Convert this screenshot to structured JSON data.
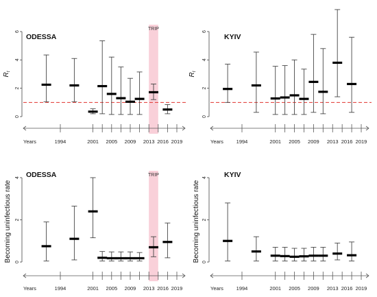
{
  "chart_data": [
    {
      "id": "odessa_rt",
      "type": "interval",
      "title": "ODESSA",
      "ylabel": "R_t",
      "ylim": [
        0,
        6
      ],
      "yticks": [
        0,
        2,
        4,
        6
      ],
      "reference_line": 1,
      "trip_band": {
        "label": "TRIP",
        "from": 2013,
        "to": 2015
      },
      "points": [
        {
          "x": 1991,
          "median": 2.25,
          "low": 1.05,
          "high": 4.35
        },
        {
          "x": 1997,
          "median": 2.2,
          "low": 1.05,
          "high": 4.1
        },
        {
          "x": 2001,
          "median": 0.35,
          "low": 0.2,
          "high": 0.55
        },
        {
          "x": 2003,
          "median": 2.15,
          "low": 0.2,
          "high": 5.35
        },
        {
          "x": 2005,
          "median": 1.6,
          "low": 0.15,
          "high": 4.2
        },
        {
          "x": 2007,
          "median": 1.3,
          "low": 0.15,
          "high": 3.5
        },
        {
          "x": 2009,
          "median": 1.05,
          "low": 0.15,
          "high": 2.7
        },
        {
          "x": 2011,
          "median": 1.25,
          "low": 0.15,
          "high": 3.15
        },
        {
          "x": 2014,
          "median": 1.72,
          "low": 1.2,
          "high": 2.3
        },
        {
          "x": 2017,
          "median": 0.5,
          "low": 0.2,
          "high": 0.85
        }
      ]
    },
    {
      "id": "kyiv_rt",
      "type": "interval",
      "title": "KYIV",
      "ylabel": "R_t",
      "ylim": [
        0,
        6
      ],
      "yticks": [
        0,
        2,
        4,
        6
      ],
      "reference_line": 1,
      "points": [
        {
          "x": 1991,
          "median": 1.95,
          "low": 1.0,
          "high": 3.7
        },
        {
          "x": 1997,
          "median": 2.2,
          "low": 0.3,
          "high": 4.55
        },
        {
          "x": 2001,
          "median": 1.28,
          "low": 0.15,
          "high": 3.55
        },
        {
          "x": 2003,
          "median": 1.35,
          "low": 0.15,
          "high": 3.6
        },
        {
          "x": 2005,
          "median": 1.5,
          "low": 0.15,
          "high": 4.0
        },
        {
          "x": 2007,
          "median": 1.25,
          "low": 0.15,
          "high": 3.35
        },
        {
          "x": 2009,
          "median": 2.45,
          "low": 0.3,
          "high": 5.8
        },
        {
          "x": 2011,
          "median": 1.75,
          "low": 0.2,
          "high": 4.8
        },
        {
          "x": 2014,
          "median": 3.8,
          "low": 1.4,
          "high": 7.55
        },
        {
          "x": 2017,
          "median": 2.3,
          "low": 0.3,
          "high": 5.6
        }
      ]
    },
    {
      "id": "odessa_rate",
      "type": "interval",
      "title": "ODESSA",
      "ylabel": "Becoming uninfectious rate",
      "ylim": [
        0,
        4
      ],
      "yticks": [
        0,
        2,
        4
      ],
      "trip_band": {
        "label": "TRIP",
        "from": 2013,
        "to": 2015
      },
      "points": [
        {
          "x": 1991,
          "median": 0.75,
          "low": 0.05,
          "high": 1.9
        },
        {
          "x": 1997,
          "median": 1.1,
          "low": 0.1,
          "high": 2.65
        },
        {
          "x": 2001,
          "median": 2.4,
          "low": 1.15,
          "high": 4.0
        },
        {
          "x": 2003,
          "median": 0.2,
          "low": 0.05,
          "high": 0.5
        },
        {
          "x": 2005,
          "median": 0.18,
          "low": 0.05,
          "high": 0.48
        },
        {
          "x": 2007,
          "median": 0.18,
          "low": 0.05,
          "high": 0.48
        },
        {
          "x": 2009,
          "median": 0.18,
          "low": 0.05,
          "high": 0.48
        },
        {
          "x": 2011,
          "median": 0.18,
          "low": 0.05,
          "high": 0.45
        },
        {
          "x": 2014,
          "median": 0.7,
          "low": 0.25,
          "high": 1.2
        },
        {
          "x": 2017,
          "median": 0.95,
          "low": 0.2,
          "high": 1.85
        }
      ]
    },
    {
      "id": "kyiv_rate",
      "type": "interval",
      "title": "KYIV",
      "ylabel": "Becoming uninfectious rate",
      "ylim": [
        0,
        4
      ],
      "yticks": [
        0,
        2,
        4
      ],
      "points": [
        {
          "x": 1991,
          "median": 1.0,
          "low": 0.05,
          "high": 2.8
        },
        {
          "x": 1997,
          "median": 0.5,
          "low": 0.05,
          "high": 1.2
        },
        {
          "x": 2001,
          "median": 0.3,
          "low": 0.05,
          "high": 0.7
        },
        {
          "x": 2003,
          "median": 0.28,
          "low": 0.05,
          "high": 0.7
        },
        {
          "x": 2005,
          "median": 0.25,
          "low": 0.05,
          "high": 0.65
        },
        {
          "x": 2007,
          "median": 0.27,
          "low": 0.05,
          "high": 0.65
        },
        {
          "x": 2009,
          "median": 0.3,
          "low": 0.05,
          "high": 0.7
        },
        {
          "x": 2011,
          "median": 0.3,
          "low": 0.05,
          "high": 0.7
        },
        {
          "x": 2014,
          "median": 0.4,
          "low": 0.1,
          "high": 0.9
        },
        {
          "x": 2017,
          "median": 0.32,
          "low": 0.05,
          "high": 0.95
        }
      ]
    }
  ],
  "timeline": {
    "start_label": "Years",
    "labels": [
      "1994",
      "2001",
      "2005",
      "2009",
      "2013",
      "2016",
      "2019"
    ],
    "tick_years": [
      1994,
      2001,
      2003,
      2005,
      2007,
      2009,
      2011,
      2013,
      2015,
      2017,
      2019
    ]
  },
  "colors": {
    "trip_band": "#f9d0d9",
    "reference_line": "#e0322c",
    "median": "#000000",
    "whisker": "#444444"
  }
}
